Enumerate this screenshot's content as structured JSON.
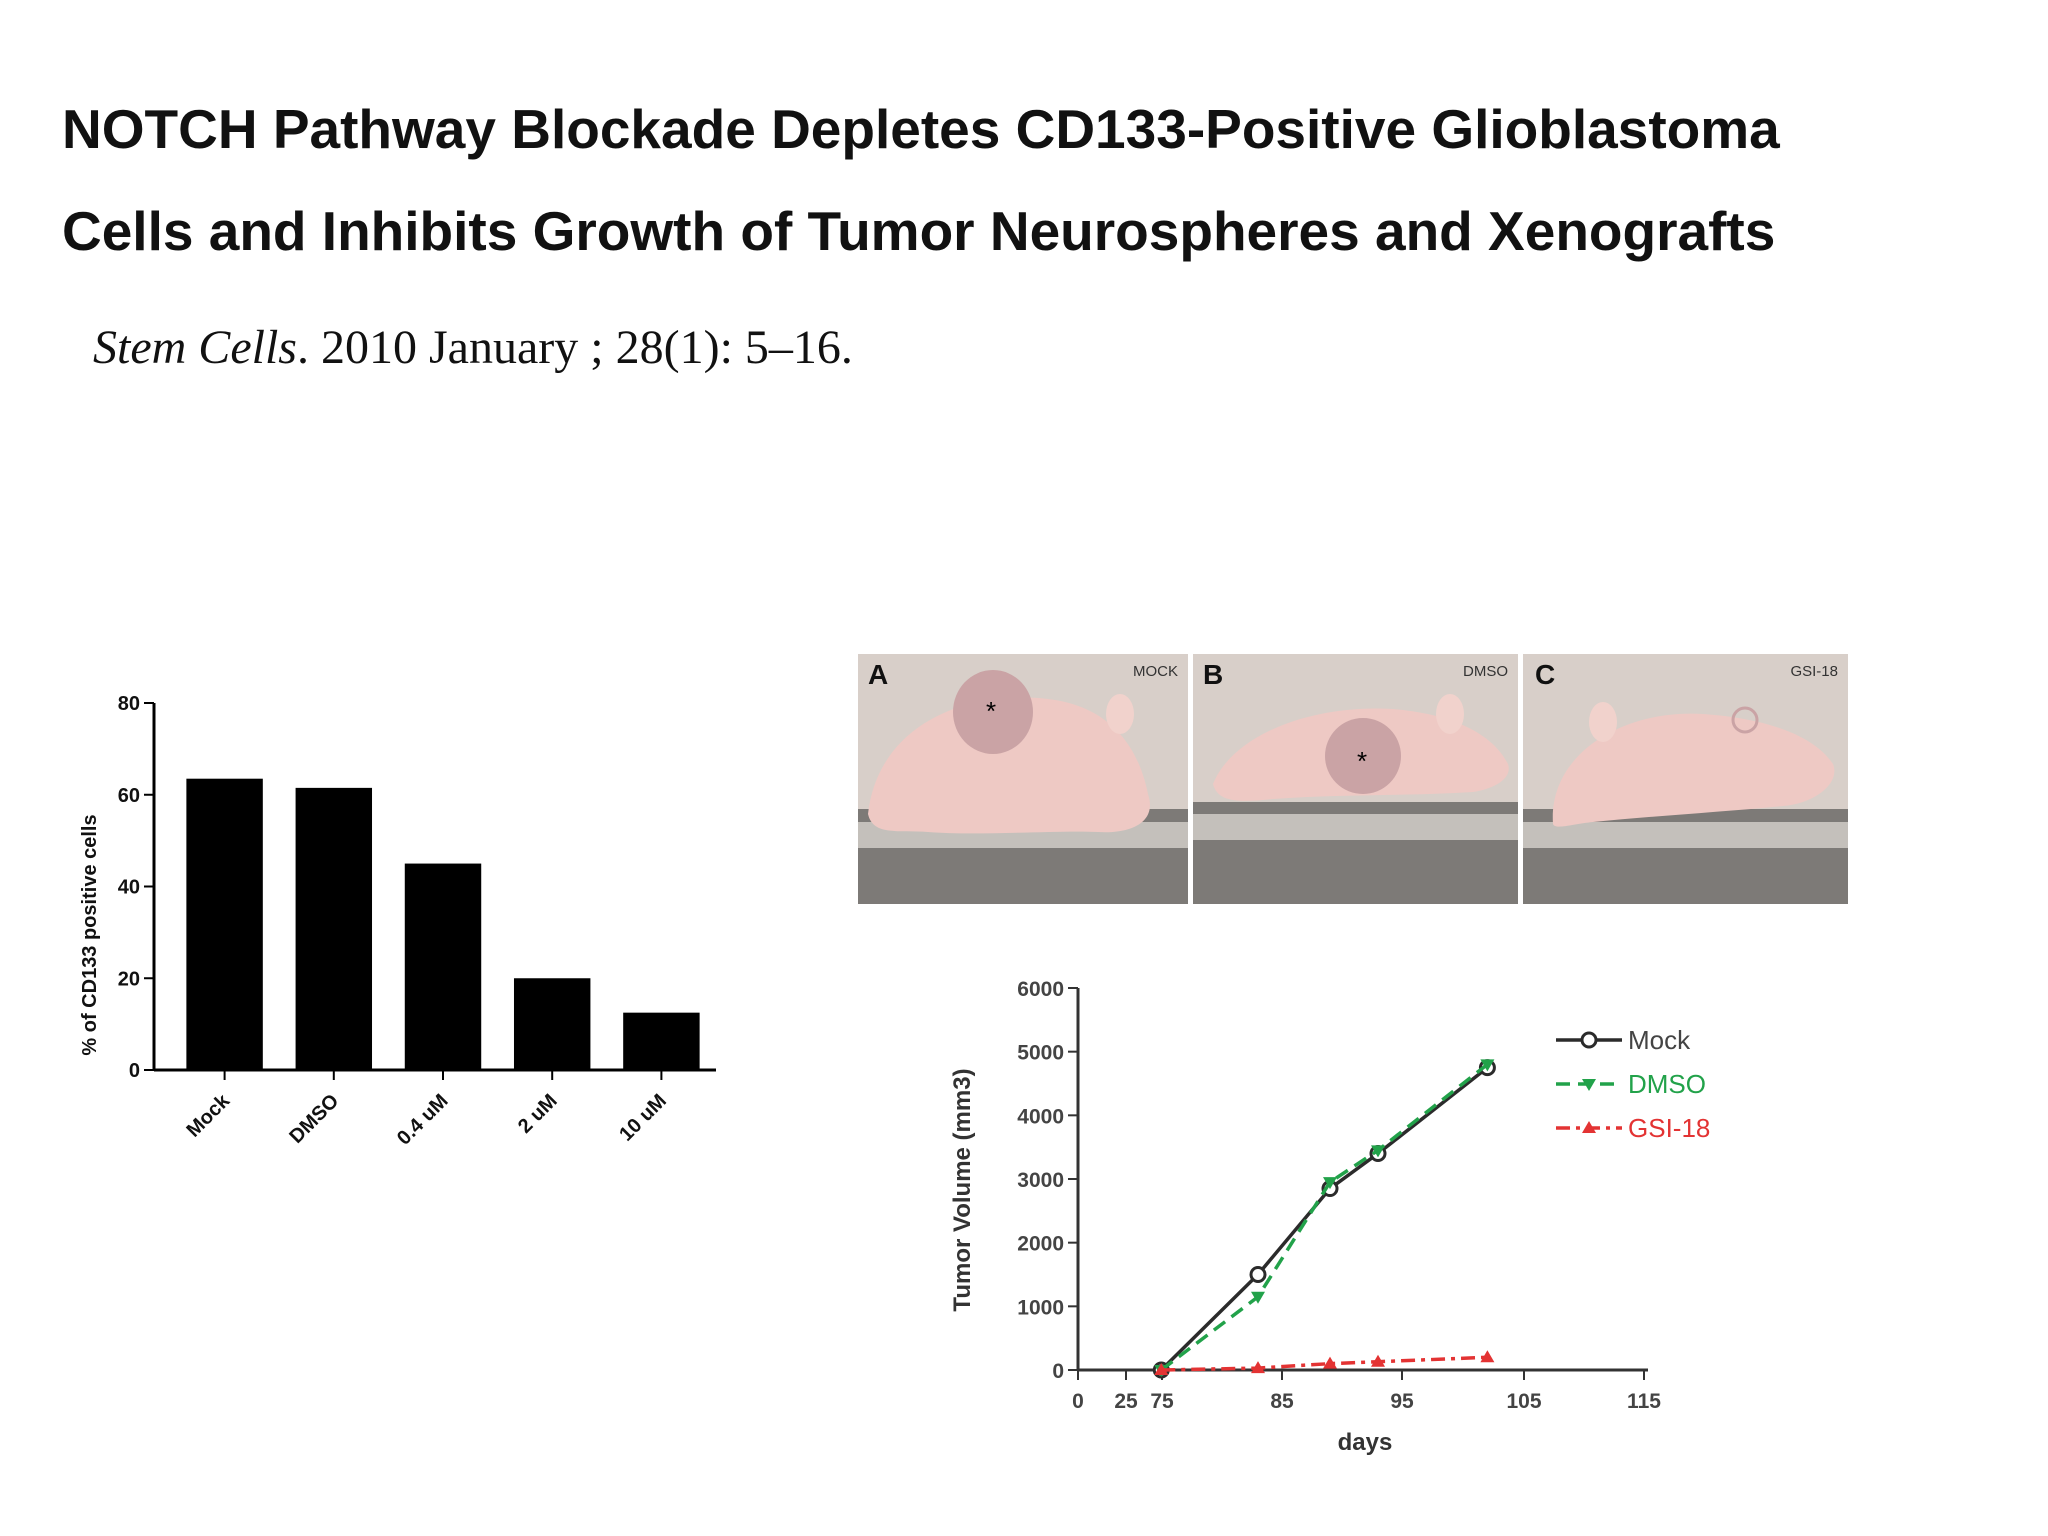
{
  "title_line1": "NOTCH Pathway Blockade Depletes CD133-Positive Glioblastoma",
  "title_line2": "Cells and Inhibits Growth of Tumor Neurospheres and Xenografts",
  "citation": {
    "journal": "Stem Cells",
    "details": ". 2010 January ; 28(1): 5–16."
  },
  "photos": [
    {
      "letter": "A",
      "label": "MOCK"
    },
    {
      "letter": "B",
      "label": "DMSO"
    },
    {
      "letter": "C",
      "label": "GSI-18"
    }
  ],
  "chart_data": [
    {
      "type": "bar",
      "categories": [
        "Mock",
        "DMSO",
        "0.4 uM",
        "2 uM",
        "10 uM"
      ],
      "values": [
        63.5,
        61.5,
        45,
        20,
        12.5
      ],
      "ylabel": "% of CD133 positive cells",
      "xlabel": "",
      "ylim": [
        0,
        80
      ],
      "yticks": [
        0,
        20,
        40,
        60,
        80
      ],
      "bar_color": "#000000"
    },
    {
      "type": "line",
      "xlabel": "days",
      "ylabel": "Tumor Volume (mm3)",
      "ylim": [
        0,
        6000
      ],
      "yticks": [
        0,
        1000,
        2000,
        3000,
        4000,
        5000,
        6000
      ],
      "xticks": [
        "0",
        "25",
        "75",
        "85",
        "95",
        "105",
        "115"
      ],
      "x_axis_break": "25–75 compressed",
      "legend_position": "top-right",
      "series": [
        {
          "name": "Mock",
          "color": "#2b2b2b",
          "marker": "circle",
          "dash": "solid",
          "x": [
            74,
            83,
            89,
            93,
            102
          ],
          "y": [
            0,
            1500,
            2850,
            3400,
            4750
          ]
        },
        {
          "name": "DMSO",
          "color": "#22a24a",
          "marker": "triangle-down",
          "dash": "dashed",
          "x": [
            74,
            83,
            89,
            93,
            102
          ],
          "y": [
            0,
            1150,
            2950,
            3450,
            4800
          ]
        },
        {
          "name": "GSI-18",
          "color": "#e33333",
          "marker": "triangle-up",
          "dash": "dashdot",
          "x": [
            74,
            83,
            89,
            93,
            102
          ],
          "y": [
            0,
            30,
            100,
            130,
            200
          ]
        }
      ]
    }
  ]
}
